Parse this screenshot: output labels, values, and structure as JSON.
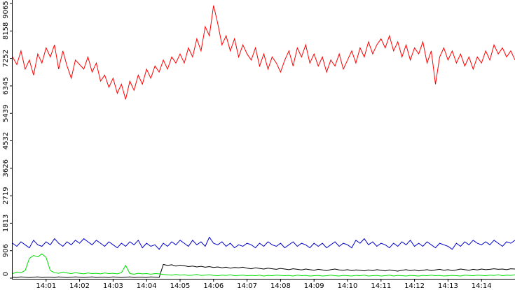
{
  "chart_data": {
    "type": "line",
    "categories": [
      null,
      null,
      null,
      null,
      null,
      null,
      null,
      null,
      "14:01",
      null,
      null,
      null,
      null,
      null,
      null,
      null,
      "14:02",
      null,
      null,
      null,
      null,
      null,
      null,
      null,
      "14:03",
      null,
      null,
      null,
      null,
      null,
      null,
      null,
      "14:04",
      null,
      null,
      null,
      null,
      null,
      null,
      null,
      "14:05",
      null,
      null,
      null,
      null,
      null,
      null,
      null,
      "14:06",
      null,
      null,
      null,
      null,
      null,
      null,
      null,
      "14:07",
      null,
      null,
      null,
      null,
      null,
      null,
      null,
      "14:08",
      null,
      null,
      null,
      null,
      null,
      null,
      null,
      "14:09",
      null,
      null,
      null,
      null,
      null,
      null,
      null,
      "14:10",
      null,
      null,
      null,
      null,
      null,
      null,
      null,
      "14:11",
      null,
      null,
      null,
      null,
      null,
      null,
      null,
      "14:12",
      null,
      null,
      null,
      null,
      null,
      null,
      null,
      "14:13",
      null,
      null,
      null,
      null,
      null,
      null,
      null,
      "14:14",
      null,
      null,
      null,
      null,
      null,
      null,
      null,
      null
    ],
    "series": [
      {
        "color": "#ff0000",
        "values": [
          7300,
          7050,
          7500,
          6900,
          7200,
          6700,
          7400,
          7100,
          7600,
          7300,
          7700,
          6900,
          7500,
          7000,
          6600,
          7200,
          7050,
          6900,
          7300,
          6800,
          7100,
          6500,
          6700,
          6300,
          6600,
          6100,
          6400,
          5900,
          6500,
          6200,
          6700,
          6400,
          6900,
          6600,
          7000,
          6800,
          7200,
          6900,
          7300,
          7100,
          7400,
          7100,
          7600,
          7300,
          7900,
          7500,
          8300,
          8000,
          9000,
          8400,
          7700,
          8000,
          7500,
          7900,
          7300,
          7700,
          7400,
          7200,
          7600,
          7000,
          7400,
          6900,
          7300,
          7100,
          6800,
          7200,
          7500,
          7000,
          7600,
          7300,
          7700,
          7100,
          7400,
          7000,
          7300,
          6800,
          7200,
          7000,
          7400,
          6900,
          7200,
          7500,
          7100,
          7600,
          7300,
          7800,
          7400,
          7700,
          7900,
          7600,
          8000,
          7500,
          7800,
          7300,
          7700,
          7200,
          7600,
          7400,
          7800,
          7100,
          7500,
          6400,
          7300,
          7600,
          7200,
          7500,
          7100,
          7400,
          7000,
          7300,
          6900,
          7300,
          7100,
          7500,
          7200,
          7700,
          7400,
          7600,
          7300,
          7500,
          7200
        ]
      },
      {
        "color": "#0000cc",
        "values": [
          1150,
          1050,
          1200,
          1100,
          1000,
          1250,
          1100,
          1050,
          1200,
          1100,
          1300,
          1150,
          1050,
          1200,
          1100,
          1250,
          1150,
          1300,
          1200,
          1100,
          1250,
          1150,
          1050,
          1200,
          1100,
          1000,
          1150,
          1050,
          1200,
          1100,
          1250,
          1000,
          1150,
          1050,
          1100,
          950,
          1150,
          1050,
          1200,
          1100,
          1250,
          1150,
          1050,
          1250,
          1100,
          1200,
          1050,
          1350,
          1150,
          1100,
          1200,
          1050,
          1150,
          1000,
          1100,
          1050,
          1150,
          1100,
          1000,
          1150,
          1050,
          1200,
          1100,
          1050,
          1150,
          1000,
          1100,
          1200,
          1050,
          1150,
          1100,
          1000,
          1150,
          1050,
          1150,
          1000,
          1100,
          1200,
          1050,
          1150,
          1100,
          1000,
          1250,
          1150,
          1300,
          1100,
          1200,
          1050,
          1150,
          1100,
          1000,
          1150,
          1050,
          1200,
          1100,
          1250,
          1050,
          1150,
          1050,
          1200,
          1100,
          1000,
          1150,
          1100,
          1050,
          950,
          1150,
          1050,
          1200,
          1100,
          1250,
          1150,
          1100,
          1200,
          1100,
          1250,
          1150,
          1050,
          1200,
          1150,
          1250
        ]
      },
      {
        "color": "#000000",
        "values": [
          30,
          20,
          40,
          30,
          20,
          30,
          40,
          20,
          30,
          30,
          20,
          40,
          30,
          20,
          30,
          40,
          30,
          20,
          30,
          40,
          20,
          30,
          30,
          20,
          40,
          30,
          20,
          30,
          40,
          20,
          30,
          30,
          20,
          40,
          30,
          20,
          450,
          420,
          440,
          400,
          430,
          410,
          380,
          400,
          370,
          390,
          360,
          380,
          350,
          370,
          340,
          360,
          330,
          350,
          340,
          360,
          330,
          310,
          340,
          320,
          300,
          330,
          310,
          290,
          320,
          300,
          280,
          310,
          290,
          270,
          300,
          280,
          260,
          290,
          270,
          250,
          280,
          300,
          270,
          260,
          280,
          250,
          270,
          260,
          240,
          270,
          250,
          280,
          260,
          240,
          270,
          250,
          230,
          260,
          280,
          250,
          270,
          240,
          260,
          280,
          250,
          270,
          290,
          260,
          280,
          250,
          270,
          300,
          280,
          260,
          290,
          270,
          300,
          280,
          290,
          310,
          290,
          300,
          280,
          310,
          300
        ]
      },
      {
        "color": "#00dd00",
        "values": [
          150,
          200,
          180,
          250,
          650,
          750,
          700,
          800,
          680,
          250,
          180,
          160,
          200,
          170,
          150,
          180,
          160,
          140,
          170,
          150,
          160,
          140,
          170,
          150,
          160,
          140,
          180,
          420,
          150,
          130,
          160,
          140,
          150,
          130,
          150,
          140,
          120,
          110,
          100,
          120,
          100,
          110,
          90,
          100,
          120,
          90,
          100,
          110,
          90,
          80,
          100,
          90,
          110,
          80,
          90,
          100,
          80,
          90,
          80,
          100,
          70,
          90,
          80,
          100,
          90,
          80,
          90,
          70,
          100,
          80,
          90,
          70,
          80,
          90,
          70,
          80,
          100,
          80,
          70,
          90,
          80,
          70,
          90,
          80,
          100,
          70,
          80,
          90,
          70,
          80,
          100,
          70,
          90,
          80,
          70,
          90,
          80,
          70,
          90,
          80,
          100,
          80,
          90,
          70,
          80,
          90,
          80,
          70,
          100,
          90,
          80,
          100,
          90,
          80,
          100,
          90,
          110,
          80,
          100,
          90,
          110
        ]
      }
    ],
    "ylim": [
      0,
      9065
    ],
    "yticks": [
      0,
      906,
      1813,
      2719,
      3626,
      4532,
      5439,
      6345,
      7252,
      8158,
      9065
    ]
  }
}
